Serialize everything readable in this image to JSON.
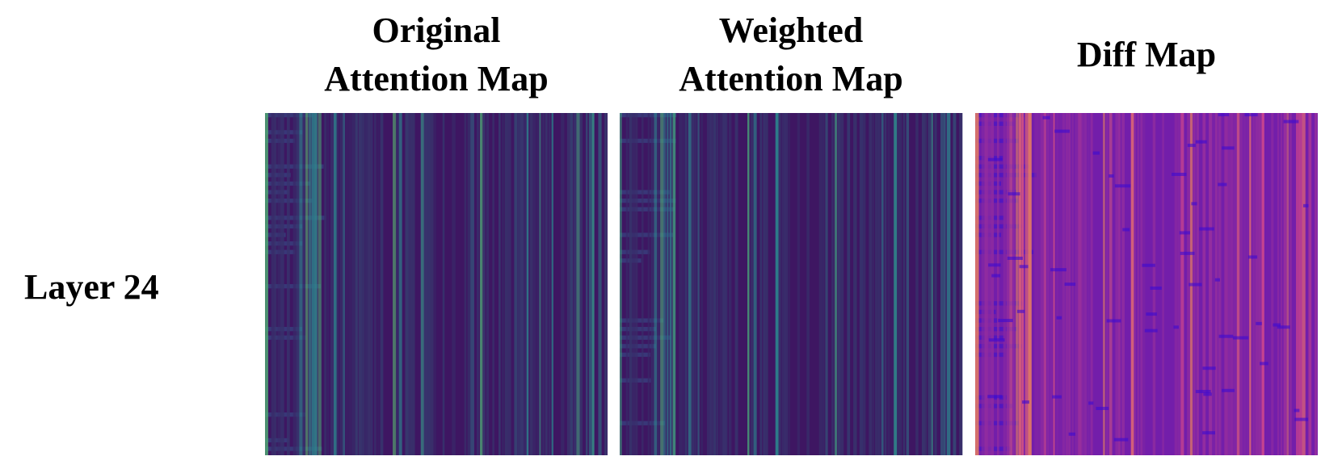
{
  "row_label": "Layer 24",
  "panels": [
    {
      "title_lines": [
        "Original",
        "Attention Map"
      ]
    },
    {
      "title_lines": [
        "Weighted",
        "Attention Map"
      ]
    },
    {
      "title_lines": [
        "Diff Map"
      ]
    }
  ]
}
